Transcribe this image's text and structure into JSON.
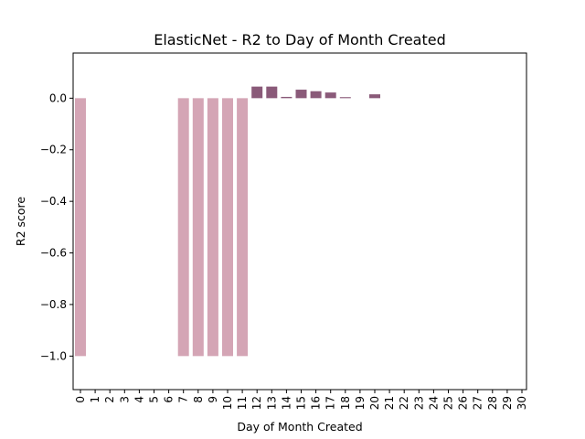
{
  "chart_data": {
    "type": "bar",
    "title": "ElasticNet - R2 to Day of Month Created",
    "xlabel": "Day of Month Created",
    "ylabel": "R2 score",
    "categories": [
      "0",
      "1",
      "2",
      "3",
      "4",
      "5",
      "6",
      "7",
      "8",
      "9",
      "10",
      "11",
      "12",
      "13",
      "14",
      "15",
      "16",
      "17",
      "18",
      "19",
      "20",
      "21",
      "22",
      "23",
      "24",
      "25",
      "26",
      "27",
      "28",
      "29",
      "30"
    ],
    "values": [
      -1.0,
      0,
      0,
      0,
      0,
      0,
      0,
      -1.0,
      -1.0,
      -1.0,
      -1.0,
      -1.0,
      0.045,
      0.045,
      0.005,
      0.033,
      0.027,
      0.022,
      0.004,
      0,
      0.015,
      0,
      0,
      0,
      0,
      0,
      0,
      0,
      0,
      0,
      0
    ],
    "ylim": [
      -1.13,
      0.175
    ],
    "yticks": [
      0.0,
      -0.2,
      -0.4,
      -0.6,
      -0.8,
      -1.0
    ],
    "ytick_labels": [
      "0.0",
      "−0.2",
      "−0.4",
      "−0.6",
      "−0.8",
      "−1.0"
    ],
    "colors": {
      "negative": "#d4a5b5",
      "positive": "#8a5a79"
    },
    "grid": false
  }
}
